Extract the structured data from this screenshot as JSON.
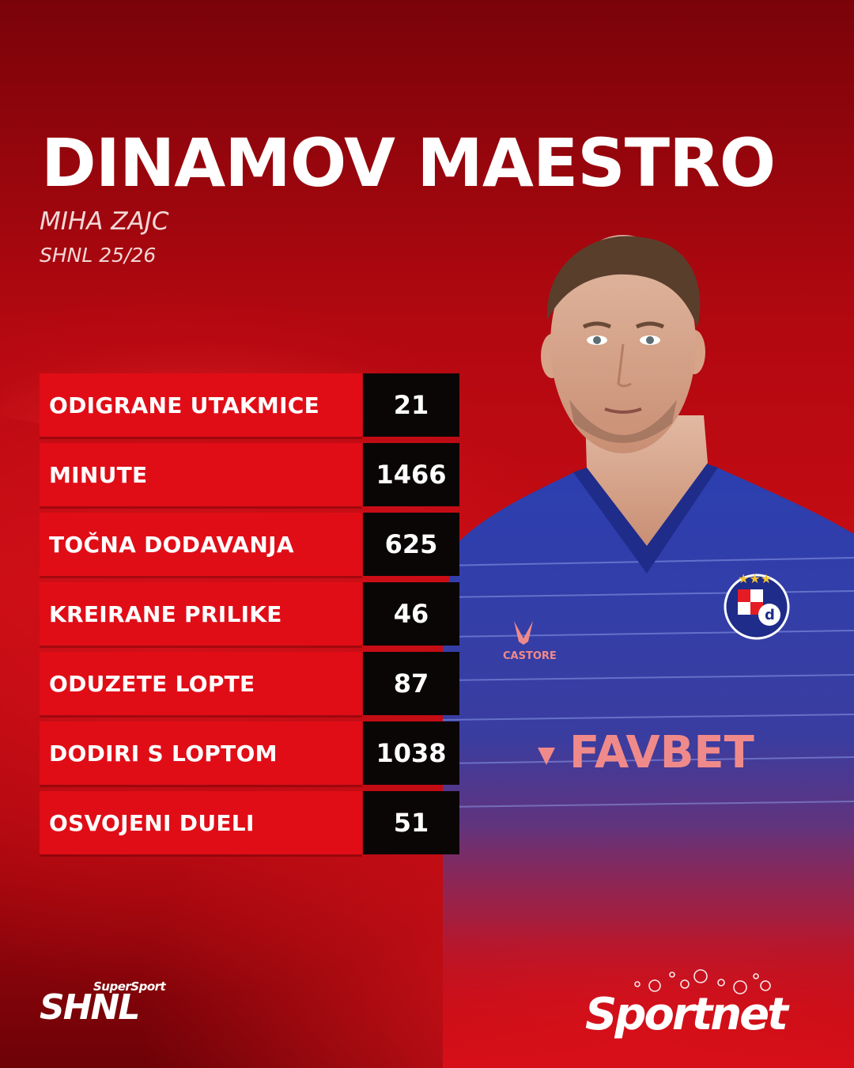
{
  "header": {
    "title": "DINAMOV MAESTRO",
    "player_name": "MIHA ZAJC",
    "season": "SHNL 25/26"
  },
  "stats": [
    {
      "label": "ODIGRANE UTAKMICE",
      "value": "21"
    },
    {
      "label": "MINUTE",
      "value": "1466"
    },
    {
      "label": "TOČNA DODAVANJA",
      "value": "625"
    },
    {
      "label": "KREIRANE PRILIKE",
      "value": "46"
    },
    {
      "label": "ODUZETE LOPTE",
      "value": "87"
    },
    {
      "label": "DODIRI S LOPTOM",
      "value": "1038"
    },
    {
      "label": "OSVOJENI DUELI",
      "value": "51"
    }
  ],
  "jersey": {
    "kit_brand": "CASTORE",
    "sponsor": "FAVBET"
  },
  "logos": {
    "league_small": "SuperSport",
    "league_main": "SHNL",
    "publisher": "Sportnet"
  },
  "colors": {
    "background": "#c70c14",
    "label_bg": "#e00d17",
    "value_bg": "#0b0606",
    "jersey": "#2a3ca8",
    "text": "#ffffff"
  }
}
